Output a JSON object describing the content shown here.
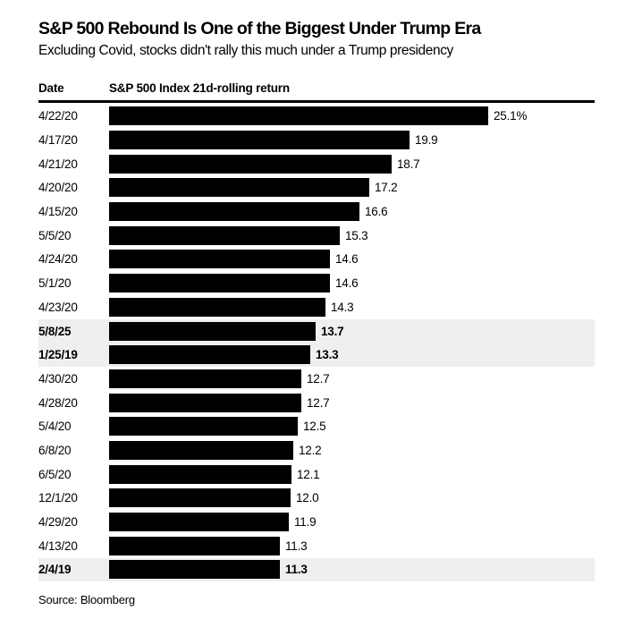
{
  "header": {
    "title": "S&P 500 Rebound Is One of the Biggest Under Trump Era",
    "subtitle": "Excluding Covid, stocks didn't rally this much under a Trump presidency"
  },
  "table": {
    "date_header": "Date",
    "value_header": "S&P 500 Index 21d-rolling return"
  },
  "chart_data": {
    "type": "bar",
    "orientation": "horizontal",
    "title": "S&P 500 Rebound Is One of the Biggest Under Trump Era",
    "subtitle": "Excluding Covid, stocks didn't rally this much under a Trump presidency",
    "xlabel": "S&P 500 Index 21d-rolling return",
    "ylabel": "Date",
    "xlim": [
      0,
      25.1
    ],
    "grid": false,
    "legend": false,
    "value_unit": "percent",
    "categories": [
      "4/22/20",
      "4/17/20",
      "4/21/20",
      "4/20/20",
      "4/15/20",
      "5/5/20",
      "4/24/20",
      "5/1/20",
      "4/23/20",
      "5/8/25",
      "1/25/19",
      "4/30/20",
      "4/28/20",
      "5/4/20",
      "6/8/20",
      "6/5/20",
      "12/1/20",
      "4/29/20",
      "4/13/20",
      "2/4/19"
    ],
    "values": [
      25.1,
      19.9,
      18.7,
      17.2,
      16.6,
      15.3,
      14.6,
      14.6,
      14.3,
      13.7,
      13.3,
      12.7,
      12.7,
      12.5,
      12.2,
      12.1,
      12.0,
      11.9,
      11.3,
      11.3
    ],
    "labels": [
      "25.1%",
      "19.9",
      "18.7",
      "17.2",
      "16.6",
      "15.3",
      "14.6",
      "14.6",
      "14.3",
      "13.7",
      "13.3",
      "12.7",
      "12.7",
      "12.5",
      "12.2",
      "12.1",
      "12.0",
      "11.9",
      "11.3",
      "11.3"
    ],
    "highlighted_categories": [
      "5/8/25",
      "1/25/19",
      "2/4/19"
    ]
  },
  "footer": {
    "source": "Source: Bloomberg"
  },
  "colors": {
    "bar": "#000000",
    "highlight_background": "#efefef",
    "text": "#000000",
    "rule": "#000000",
    "page_background": "#ffffff"
  }
}
